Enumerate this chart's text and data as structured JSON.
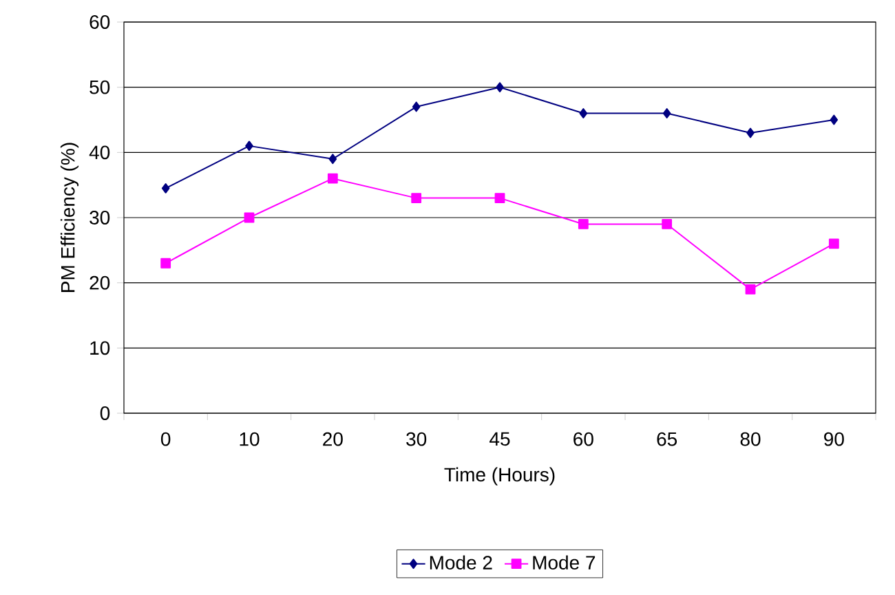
{
  "chart_data": {
    "type": "line",
    "xlabel": "Time (Hours)",
    "ylabel": "PM Efficiency (%)",
    "categories": [
      "0",
      "10",
      "20",
      "30",
      "45",
      "60",
      "65",
      "80",
      "90"
    ],
    "series": [
      {
        "name": "Mode 2",
        "color": "#000080",
        "marker": "diamond",
        "values": [
          34.5,
          41,
          39,
          47,
          50,
          46,
          46,
          43,
          45
        ]
      },
      {
        "name": "Mode 7",
        "color": "#ff00ff",
        "marker": "square",
        "values": [
          23,
          30,
          36,
          33,
          33,
          29,
          29,
          19,
          26
        ]
      }
    ],
    "ylim": [
      0,
      60
    ],
    "yticks": [
      0,
      10,
      20,
      30,
      40,
      50,
      60
    ],
    "grid": "y",
    "legend": "bottom",
    "line_style": "solid"
  }
}
